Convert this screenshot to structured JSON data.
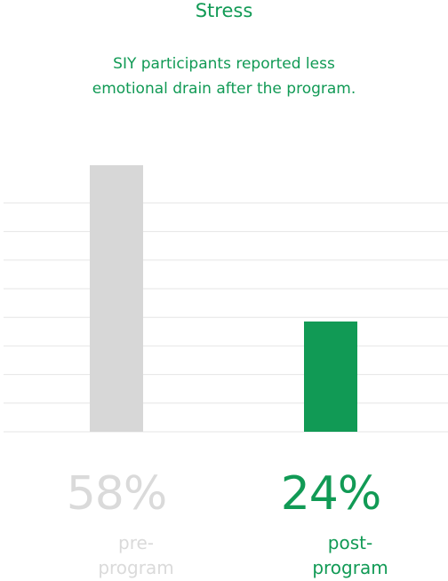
{
  "title": "Stress",
  "subtitle": {
    "line1": "SIY participants reported less",
    "line2": "emotional drain after the program."
  },
  "colors": {
    "accent": "#119a55",
    "muted_bar": "#d7d7d7",
    "muted_text": "#dadada",
    "grid": "#e6e6e6"
  },
  "chart_data": {
    "type": "bar",
    "categories": [
      "pre-program",
      "post-program"
    ],
    "values": [
      58,
      24
    ],
    "value_labels": [
      "58%",
      "24%"
    ],
    "category_labels": [
      {
        "line1": "pre-",
        "line2": "program"
      },
      {
        "line1": "post-",
        "line2": "program"
      }
    ],
    "title": "Stress",
    "xlabel": "",
    "ylabel": "",
    "ylim": [
      0,
      58
    ],
    "grid": true,
    "legend": "none"
  }
}
